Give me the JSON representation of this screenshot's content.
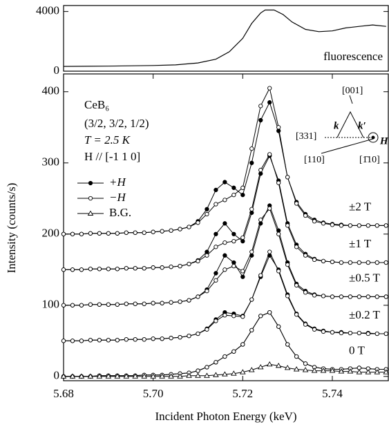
{
  "chart_data": [
    {
      "type": "line",
      "x": [
        5.68,
        5.69,
        5.7,
        5.705,
        5.71,
        5.714,
        5.717,
        5.72,
        5.722,
        5.724,
        5.725,
        5.727,
        5.729,
        5.731,
        5.734,
        5.737,
        5.74,
        5.743,
        5.746,
        5.749,
        5.752
      ],
      "series": [
        {
          "name": "fluorescence",
          "color": "#000000",
          "values": [
            320,
            340,
            380,
            420,
            550,
            800,
            1300,
            2200,
            3200,
            3900,
            4100,
            4100,
            3800,
            3300,
            2800,
            2650,
            2700,
            2900,
            3000,
            3100,
            3000
          ]
        }
      ],
      "xlim": [
        5.68,
        5.7525
      ],
      "ylim": [
        0,
        4400
      ],
      "yticks": [
        0,
        4000
      ]
    },
    {
      "type": "line-markers",
      "x_label": "Incident Photon Energy  (keV)",
      "y_label": "Intensity  (counts/s)",
      "sample": [
        "CeB₆",
        "(3/2, 3/2, 1/2)",
        "T = 2.5 K",
        "H // [-1 1 0]"
      ],
      "inset_labels": [
        "[001]",
        "k",
        "k′",
        "[331]",
        "H",
        "[110]",
        "[1̄10]"
      ],
      "field_labels": [
        "0 T",
        "±0.2 T",
        "±0.5 T",
        "±1 T",
        "±2 T"
      ],
      "x": [
        5.68,
        5.682,
        5.684,
        5.686,
        5.688,
        5.69,
        5.692,
        5.694,
        5.696,
        5.698,
        5.7,
        5.702,
        5.704,
        5.706,
        5.708,
        5.71,
        5.712,
        5.714,
        5.716,
        5.718,
        5.72,
        5.722,
        5.724,
        5.726,
        5.728,
        5.73,
        5.732,
        5.734,
        5.736,
        5.738,
        5.74,
        5.742,
        5.744,
        5.746,
        5.748,
        5.75,
        5.752
      ],
      "series": [
        {
          "name": "+H",
          "marker": "filled",
          "color": "#000000",
          "traces": [
            [
              0,
              0,
              0,
              0,
              1,
              1,
              1,
              1,
              1,
              2,
              2,
              2,
              3,
              4,
              5,
              8,
              13,
              20,
              28,
              35,
              45,
              65,
              85,
              90,
              70,
              45,
              28,
              18,
              13,
              11,
              10,
              10,
              11,
              12,
              11,
              10,
              10
            ],
            [
              50,
              50,
              50,
              51,
              51,
              51,
              51,
              52,
              52,
              52,
              53,
              53,
              54,
              55,
              57,
              60,
              67,
              80,
              90,
              88,
              85,
              108,
              140,
              170,
              150,
              115,
              88,
              74,
              67,
              64,
              62,
              62,
              61,
              61,
              61,
              60,
              60
            ],
            [
              100,
              100,
              100,
              101,
              101,
              101,
              101,
              102,
              102,
              102,
              103,
              103,
              104,
              105,
              107,
              112,
              122,
              145,
              170,
              160,
              140,
              170,
              215,
              240,
              205,
              160,
              130,
              120,
              115,
              113,
              112,
              112,
              112,
              112,
              112,
              112,
              112
            ],
            [
              150,
              150,
              150,
              151,
              151,
              151,
              151,
              152,
              152,
              152,
              153,
              153,
              154,
              155,
              158,
              163,
              175,
              200,
              215,
              200,
              190,
              230,
              285,
              310,
              275,
              215,
              185,
              172,
              165,
              162,
              161,
              160,
              160,
              160,
              160,
              160,
              160
            ],
            [
              200,
              200,
              200,
              201,
              201,
              201,
              201,
              202,
              202,
              202,
              203,
              204,
              205,
              207,
              210,
              218,
              235,
              262,
              273,
              265,
              255,
              300,
              360,
              385,
              345,
              280,
              245,
              228,
              220,
              216,
              214,
              213,
              212,
              212,
              212,
              212,
              212
            ]
          ]
        },
        {
          "name": "−H",
          "marker": "open",
          "color": "#000000",
          "traces": [
            [
              0,
              0,
              0,
              0,
              1,
              1,
              1,
              1,
              1,
              2,
              2,
              2,
              3,
              4,
              5,
              8,
              13,
              20,
              28,
              35,
              45,
              65,
              85,
              90,
              70,
              45,
              28,
              18,
              13,
              11,
              10,
              10,
              11,
              12,
              11,
              10,
              10
            ],
            [
              50,
              50,
              50,
              51,
              51,
              51,
              51,
              52,
              52,
              52,
              53,
              53,
              54,
              55,
              57,
              60,
              66,
              78,
              86,
              85,
              84,
              108,
              142,
              175,
              148,
              113,
              87,
              73,
              66,
              63,
              62,
              61,
              61,
              61,
              60,
              60,
              60
            ],
            [
              100,
              100,
              100,
              101,
              101,
              101,
              101,
              102,
              102,
              102,
              103,
              103,
              104,
              105,
              107,
              112,
              120,
              135,
              150,
              155,
              148,
              175,
              220,
              236,
              200,
              157,
              128,
              118,
              114,
              113,
              112,
              112,
              112,
              112,
              112,
              112,
              112
            ],
            [
              150,
              150,
              150,
              151,
              151,
              151,
              151,
              152,
              152,
              152,
              153,
              153,
              154,
              155,
              158,
              162,
              170,
              182,
              188,
              190,
              195,
              235,
              290,
              312,
              272,
              212,
              182,
              170,
              164,
              162,
              161,
              160,
              160,
              160,
              160,
              160,
              160
            ],
            [
              200,
              200,
              200,
              201,
              201,
              201,
              201,
              202,
              202,
              202,
              203,
              204,
              205,
              207,
              210,
              216,
              228,
              242,
              248,
              255,
              265,
              320,
              380,
              405,
              350,
              280,
              243,
              226,
              218,
              215,
              213,
              212,
              212,
              212,
              212,
              212,
              212
            ]
          ]
        },
        {
          "name": "B.G.",
          "marker": "triangle",
          "color": "#000000",
          "traces": [
            [
              0,
              0,
              0,
              0,
              0,
              0,
              0,
              0,
              0,
              0,
              0,
              0,
              0,
              0,
              1,
              1,
              1,
              2,
              3,
              4,
              6,
              9,
              13,
              17,
              15,
              12,
              10,
              9,
              8,
              8,
              8,
              7,
              7,
              6,
              6,
              6,
              6
            ]
          ]
        }
      ],
      "xlim": [
        5.68,
        5.7525
      ],
      "ylim": [
        -6,
        425
      ],
      "xticks": [
        5.68,
        {
          "value": 5.7,
          "label": "5.70"
        },
        5.72,
        5.74
      ],
      "yticks": [
        0,
        100,
        200,
        300,
        400
      ]
    }
  ]
}
